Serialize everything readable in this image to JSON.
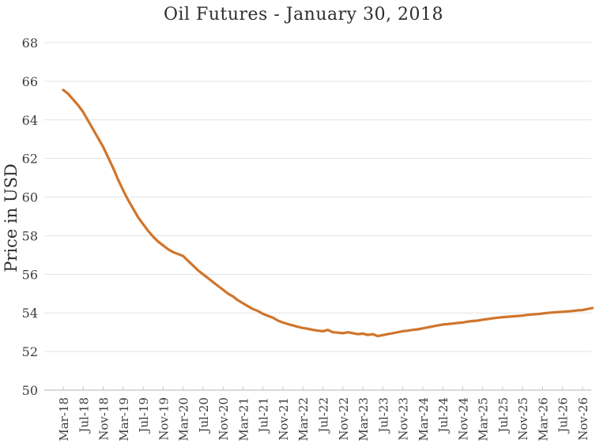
{
  "chart_data": {
    "type": "line",
    "title": "Oil Futures - January 30, 2018",
    "xlabel": "",
    "ylabel": "Price in USD",
    "ylim": [
      50,
      68
    ],
    "y_ticks": [
      68,
      66,
      64,
      62,
      60,
      58,
      56,
      54,
      52,
      50
    ],
    "x_tick_labels": [
      "Mar-18",
      "Jul-18",
      "Nov-18",
      "Mar-19",
      "Jul-19",
      "Nov-19",
      "Mar-20",
      "Jul-20",
      "Nov-20",
      "Mar-21",
      "Jul-21",
      "Nov-21",
      "Mar-22",
      "Jul-22",
      "Nov-22",
      "Mar-23",
      "Jul-23",
      "Nov-23",
      "Mar-24",
      "Jul-24",
      "Nov-24",
      "Mar-25",
      "Jul-25",
      "Nov-25",
      "Mar-26",
      "Jul-26",
      "Nov-26"
    ],
    "x_tick_interval_months": 4,
    "x_range": [
      "Mar-18",
      "Jan-27"
    ],
    "grid": "horizontal-only",
    "legend_position": "none",
    "series": [
      {
        "name": "Oil futures price (USD)",
        "color": "#d0752c",
        "sampling": "monthly from Mar-18",
        "values": [
          65.55,
          65.35,
          65.05,
          64.75,
          64.4,
          63.95,
          63.5,
          63.05,
          62.6,
          62.05,
          61.5,
          60.9,
          60.35,
          59.85,
          59.4,
          58.95,
          58.6,
          58.25,
          57.95,
          57.7,
          57.5,
          57.3,
          57.15,
          57.05,
          56.95,
          56.7,
          56.45,
          56.2,
          56.0,
          55.8,
          55.6,
          55.4,
          55.2,
          55.0,
          54.85,
          54.65,
          54.5,
          54.35,
          54.2,
          54.1,
          53.95,
          53.85,
          53.75,
          53.6,
          53.5,
          53.42,
          53.35,
          53.28,
          53.22,
          53.18,
          53.12,
          53.08,
          53.05,
          53.12,
          53.0,
          52.98,
          52.95,
          53.0,
          52.95,
          52.9,
          52.93,
          52.86,
          52.9,
          52.8,
          52.85,
          52.9,
          52.95,
          53.0,
          53.05,
          53.08,
          53.12,
          53.15,
          53.2,
          53.25,
          53.3,
          53.35,
          53.4,
          53.42,
          53.45,
          53.48,
          53.5,
          53.55,
          53.58,
          53.6,
          53.65,
          53.68,
          53.72,
          53.75,
          53.78,
          53.8,
          53.82,
          53.84,
          53.86,
          53.9,
          53.92,
          53.94,
          53.97,
          54.0,
          54.02,
          54.04,
          54.06,
          54.08,
          54.1,
          54.13,
          54.15,
          54.2,
          54.25
        ]
      }
    ],
    "style": {
      "line_color": "#d0752c",
      "line_width": 3.2,
      "gridline_color": "#e3e3e3",
      "axis_line_color": "#b3b3b3",
      "tick_mark_color": "#c9c9c9",
      "label_color": "#3d3d3d",
      "title_color": "#2e2e2e",
      "background": "#ffffff"
    }
  }
}
